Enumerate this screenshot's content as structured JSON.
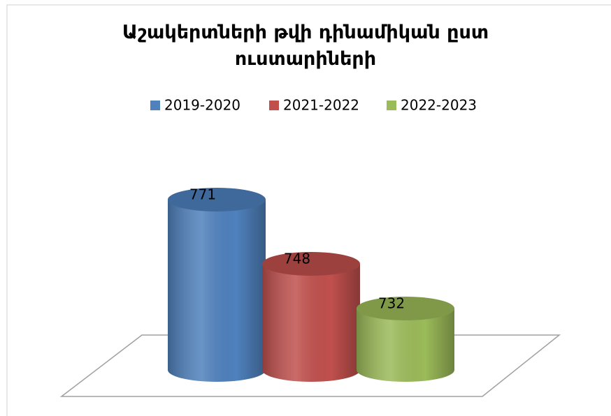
{
  "chart_data": {
    "type": "cylinder-bar",
    "title": "Աշակերտների թվի դինամիկան ըստ ուստարիների",
    "categories": [
      null
    ],
    "series": [
      {
        "name": "2019-2020",
        "color": "#4f81bd",
        "values": [
          771
        ]
      },
      {
        "name": "2021-2022",
        "color": "#c0504d",
        "values": [
          748
        ]
      },
      {
        "name": "2022-2023",
        "color": "#9bbb59",
        "values": [
          732
        ]
      }
    ],
    "ylim": [
      710,
      780
    ],
    "legend": "top"
  }
}
